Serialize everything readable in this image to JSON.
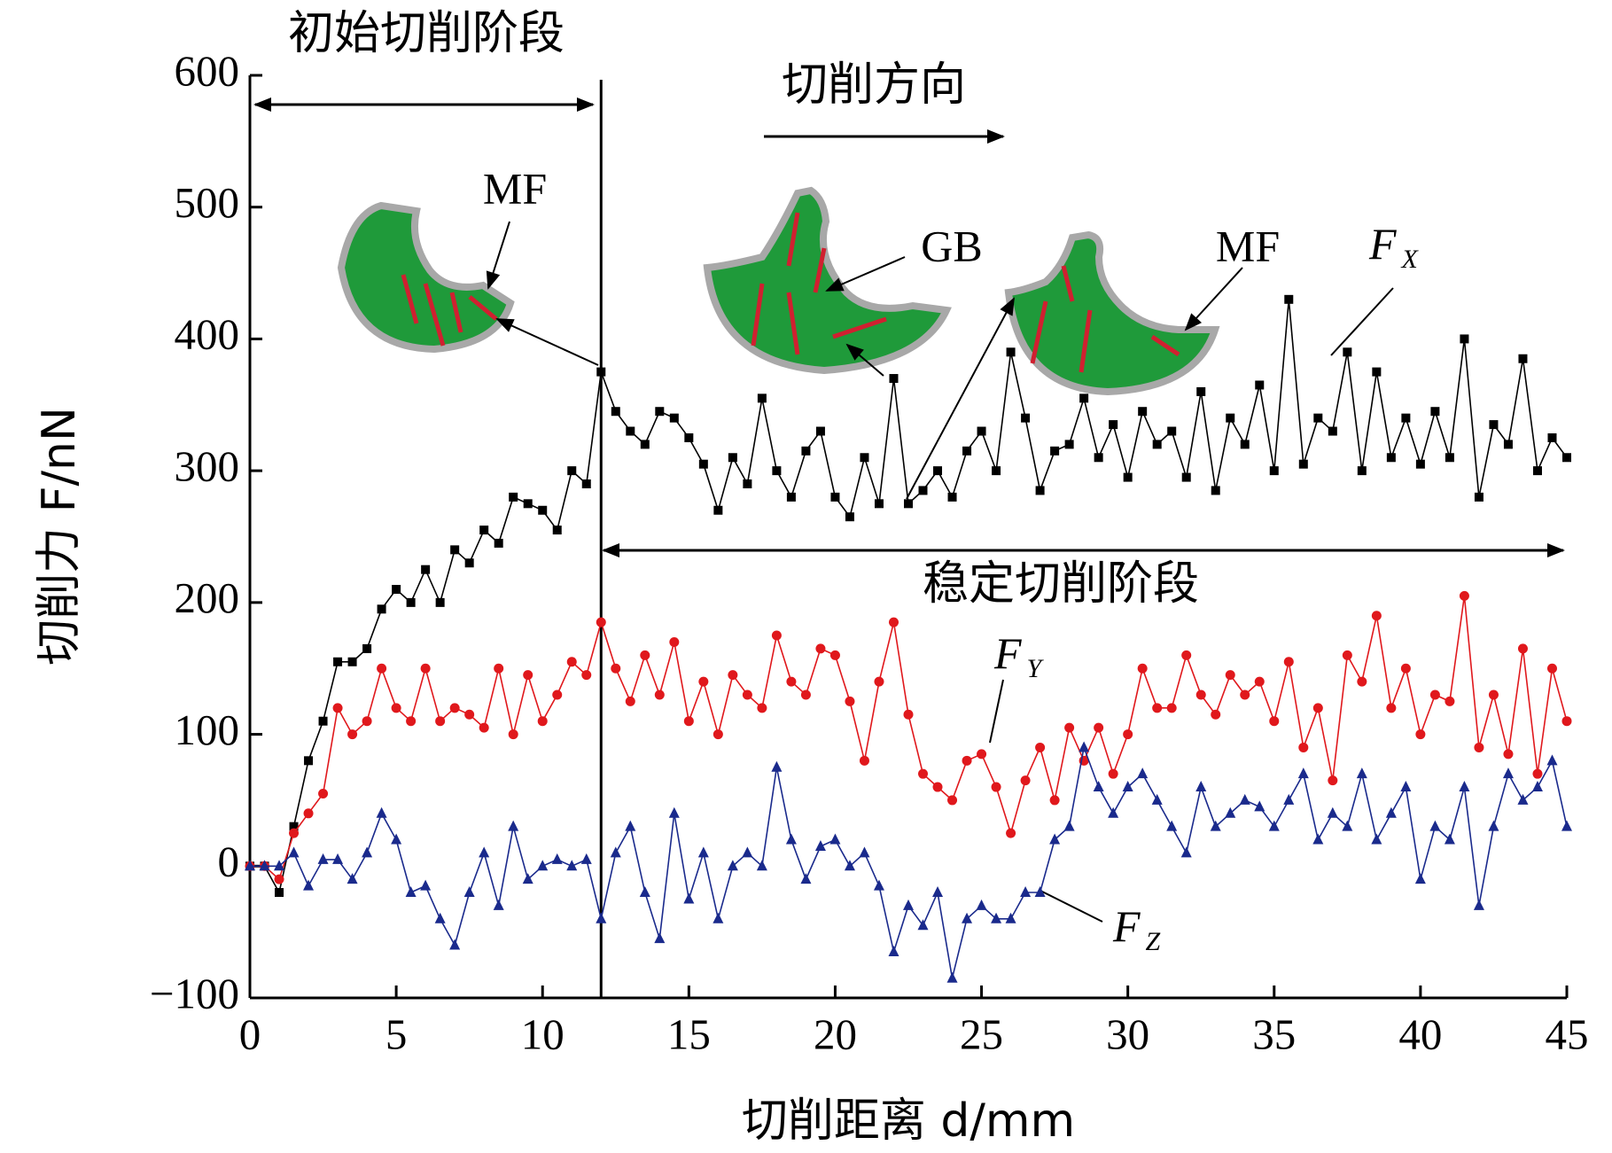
{
  "chart_data": {
    "type": "line",
    "xlabel": "切削距离 d/mm",
    "ylabel": "切削力 F/nN",
    "x": [
      0,
      0.5,
      1,
      1.5,
      2,
      2.5,
      3,
      3.5,
      4,
      4.5,
      5,
      5.5,
      6,
      6.5,
      7,
      7.5,
      8,
      8.5,
      9,
      9.5,
      10,
      10.5,
      11,
      11.5,
      12,
      12.5,
      13,
      13.5,
      14,
      14.5,
      15,
      15.5,
      16,
      16.5,
      17,
      17.5,
      18,
      18.5,
      19,
      19.5,
      20,
      20.5,
      21,
      21.5,
      22,
      22.5,
      23,
      23.5,
      24,
      24.5,
      25,
      25.5,
      26,
      26.5,
      27,
      27.5,
      28,
      28.5,
      29,
      29.5,
      30,
      30.5,
      31,
      31.5,
      32,
      32.5,
      33,
      33.5,
      34,
      34.5,
      35,
      35.5,
      36,
      36.5,
      37,
      37.5,
      38,
      38.5,
      39,
      39.5,
      40,
      40.5,
      41,
      41.5,
      42,
      42.5,
      43,
      43.5,
      44,
      44.5,
      45
    ],
    "series": [
      {
        "name": "F",
        "subscript": "X",
        "color": "#000000",
        "marker": "square",
        "values": [
          0,
          0,
          -20,
          30,
          80,
          110,
          155,
          155,
          165,
          195,
          210,
          200,
          225,
          200,
          240,
          230,
          255,
          245,
          280,
          275,
          270,
          255,
          300,
          290,
          375,
          345,
          330,
          320,
          345,
          340,
          325,
          305,
          270,
          310,
          290,
          355,
          300,
          280,
          315,
          330,
          280,
          265,
          310,
          275,
          370,
          275,
          285,
          300,
          280,
          315,
          330,
          300,
          390,
          340,
          285,
          315,
          320,
          355,
          310,
          335,
          295,
          345,
          320,
          330,
          295,
          360,
          285,
          340,
          320,
          365,
          300,
          430,
          305,
          340,
          330,
          390,
          300,
          375,
          310,
          340,
          305,
          345,
          310,
          400,
          280,
          335,
          320,
          385,
          300,
          325,
          310
        ]
      },
      {
        "name": "F",
        "subscript": "Y",
        "color": "#e0181c",
        "marker": "circle",
        "values": [
          0,
          0,
          -10,
          25,
          40,
          55,
          120,
          100,
          110,
          150,
          120,
          110,
          150,
          110,
          120,
          115,
          105,
          150,
          100,
          145,
          110,
          130,
          155,
          145,
          185,
          150,
          125,
          160,
          130,
          170,
          110,
          140,
          100,
          145,
          130,
          120,
          175,
          140,
          130,
          165,
          160,
          125,
          80,
          140,
          185,
          115,
          70,
          60,
          50,
          80,
          85,
          60,
          25,
          65,
          90,
          50,
          105,
          80,
          105,
          70,
          100,
          150,
          120,
          120,
          160,
          130,
          115,
          145,
          130,
          140,
          110,
          155,
          90,
          120,
          65,
          160,
          140,
          190,
          120,
          150,
          100,
          130,
          125,
          205,
          90,
          130,
          85,
          165,
          70,
          150,
          110
        ]
      },
      {
        "name": "F",
        "subscript": "Z",
        "color": "#1a2a8c",
        "marker": "triangle",
        "values": [
          0,
          0,
          0,
          10,
          -15,
          5,
          5,
          -10,
          10,
          40,
          20,
          -20,
          -15,
          -40,
          -60,
          -20,
          10,
          -30,
          30,
          -10,
          0,
          5,
          0,
          5,
          -40,
          10,
          30,
          -20,
          -55,
          40,
          -25,
          10,
          -40,
          0,
          10,
          0,
          75,
          20,
          -10,
          15,
          20,
          0,
          10,
          -15,
          -65,
          -30,
          -45,
          -20,
          -85,
          -40,
          -30,
          -40,
          -40,
          -20,
          -20,
          20,
          30,
          90,
          60,
          40,
          60,
          70,
          50,
          30,
          10,
          60,
          30,
          40,
          50,
          45,
          30,
          50,
          70,
          20,
          40,
          30,
          70,
          20,
          40,
          60,
          -10,
          30,
          20,
          60,
          -30,
          30,
          70,
          50,
          60,
          80,
          30
        ]
      }
    ],
    "xlim": [
      0,
      45
    ],
    "xticks": [
      0,
      5,
      10,
      15,
      20,
      25,
      30,
      35,
      40,
      45
    ],
    "ylim": [
      -100,
      600
    ],
    "yticks": [
      {
        "value": -100,
        "label": "−100"
      },
      0,
      100,
      200,
      300,
      400,
      500,
      600
    ],
    "stage_boundary": 12,
    "annotations": {
      "initial_stage": "初始切削阶段",
      "direction": "切削方向",
      "steady_stage": "稳定切削阶段",
      "mf1": "MF",
      "gb": "GB",
      "mf2": "MF"
    }
  }
}
